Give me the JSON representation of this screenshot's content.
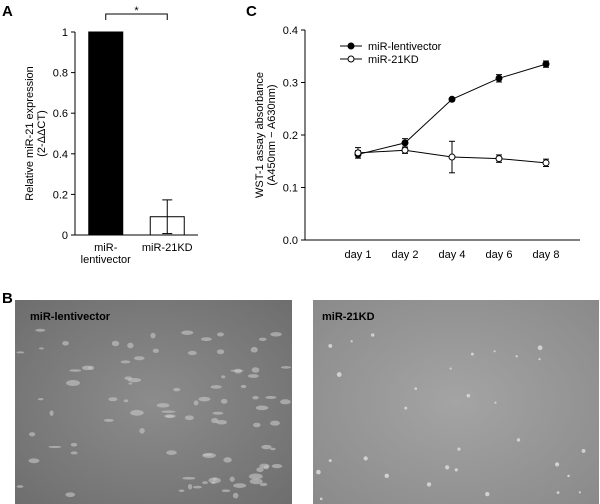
{
  "chart_data": [
    {
      "type": "bar",
      "panel": "A",
      "categories": [
        "miR-\nlentivector",
        "miR-21KD"
      ],
      "values": [
        1,
        0.09
      ],
      "errors": [
        0,
        0.083
      ],
      "colors": [
        "#000000",
        "#ffffff"
      ],
      "ylim": [
        0,
        1
      ],
      "yticks": [
        0,
        0.2,
        0.4,
        0.6,
        0.8,
        1
      ],
      "ylabel": "Relative miR-21 expression",
      "ylabel_note": "(2-ΔΔCT)",
      "annotation": "*"
    },
    {
      "type": "line",
      "panel": "C",
      "categories": [
        "day 1",
        "day 2",
        "day 4",
        "day 6",
        "day 8"
      ],
      "series": [
        {
          "name": "miR-lentivector",
          "color": "#000000",
          "marker": "filled",
          "values": [
            0.163,
            0.185,
            0.268,
            0.308,
            0.335
          ],
          "errors": [
            0.007,
            0.008,
            0.003,
            0.007,
            0.006
          ]
        },
        {
          "name": "miR-21KD",
          "color": "#000000",
          "marker": "open",
          "values": [
            0.166,
            0.171,
            0.158,
            0.155,
            0.147
          ],
          "errors": [
            0.01,
            0.006,
            0.03,
            0.007,
            0.007
          ]
        }
      ],
      "ylim": [
        0,
        0.4
      ],
      "yticks": [
        {
          "value": 0,
          "label": "0.0"
        },
        0.1,
        0.2,
        0.3,
        0.4
      ],
      "ylabel": "WST-1 assay absorbance",
      "ylabel_note": "(A450nm − A630nm)",
      "legend": "upper left"
    }
  ],
  "images": {
    "panel": "B",
    "items": [
      {
        "label": "miR-lentivector"
      },
      {
        "label": "miR-21KD"
      }
    ]
  }
}
